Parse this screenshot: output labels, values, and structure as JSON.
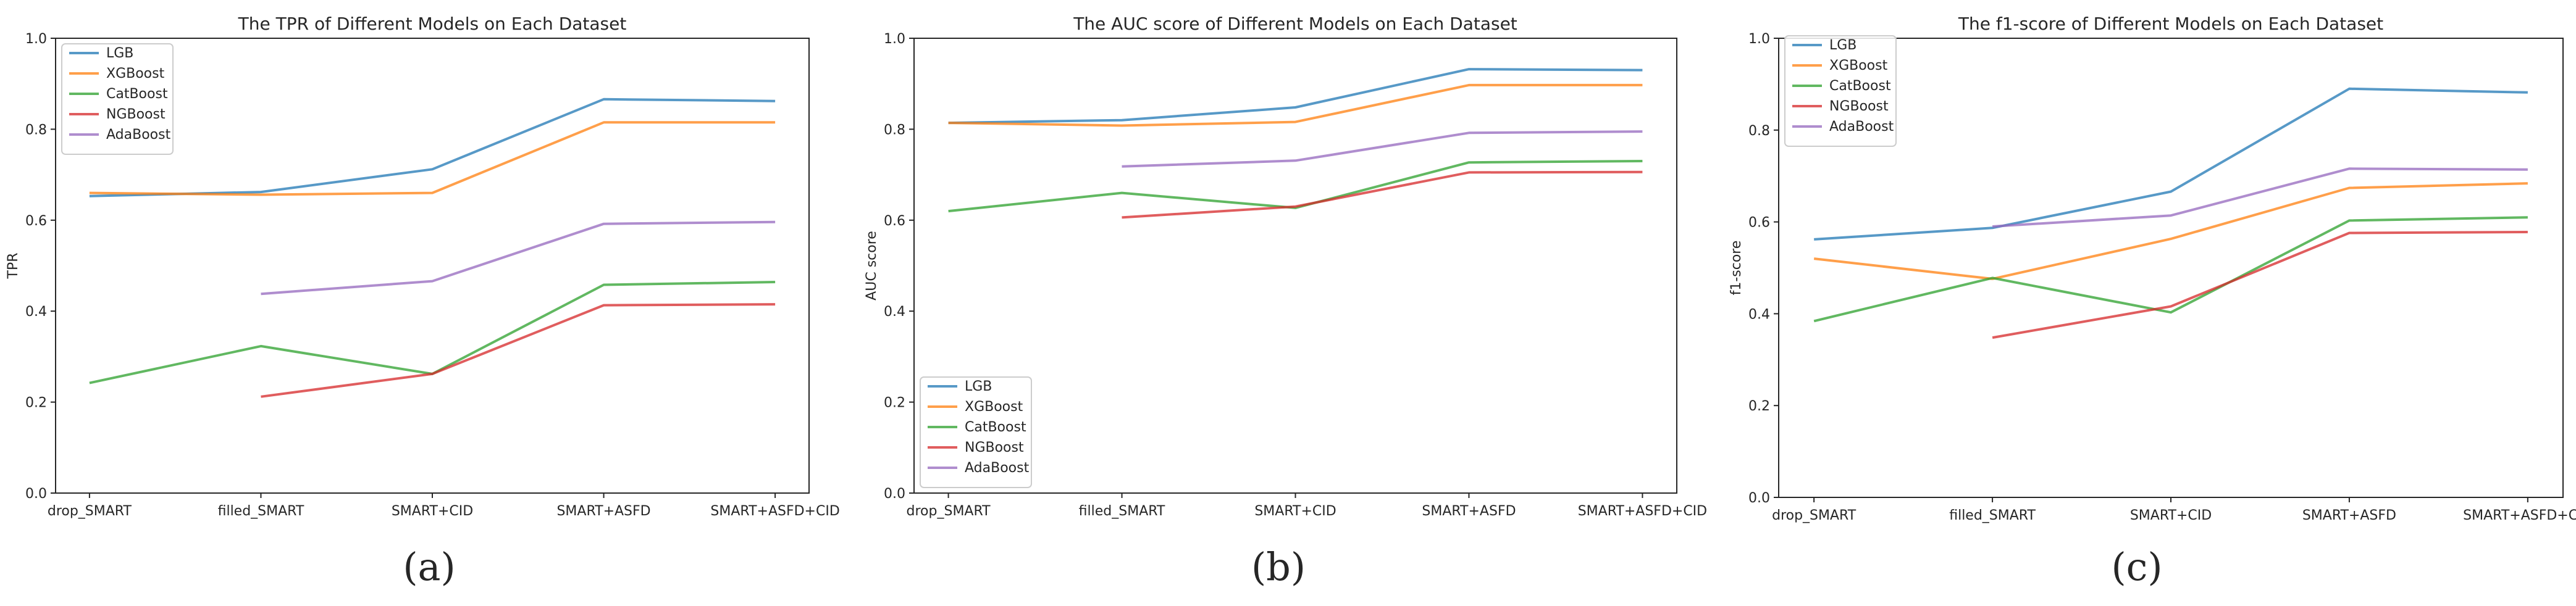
{
  "panels": [
    {
      "caption": "(a)",
      "chart_data": {
        "type": "line",
        "title": "The TPR of Different Models on Each Dataset",
        "xlabel": "",
        "ylabel": "TPR",
        "categories": [
          "drop_SMART",
          "filled_SMART",
          "SMART+CID",
          "SMART+ASFD",
          "SMART+ASFD+CID"
        ],
        "ylim": [
          0.0,
          1.0
        ],
        "yticks": [
          "0.0",
          "0.2",
          "0.4",
          "0.6",
          "0.8",
          "1.0"
        ],
        "grid": false,
        "legend_position": "upper-left",
        "series": [
          {
            "name": "LGB",
            "color": "#1f77b4",
            "values": [
              0.653,
              0.662,
              0.712,
              0.866,
              0.862
            ]
          },
          {
            "name": "XGBoost",
            "color": "#ff7f0e",
            "values": [
              0.66,
              0.656,
              0.66,
              0.815,
              0.815
            ]
          },
          {
            "name": "CatBoost",
            "color": "#2ca02c",
            "values": [
              0.242,
              0.323,
              0.262,
              0.458,
              0.464
            ]
          },
          {
            "name": "NGBoost",
            "color": "#d62728",
            "values": [
              null,
              0.212,
              0.262,
              0.413,
              0.415
            ]
          },
          {
            "name": "AdaBoost",
            "color": "#9467bd",
            "values": [
              null,
              0.438,
              0.466,
              0.592,
              0.596
            ]
          }
        ]
      }
    },
    {
      "caption": "(b)",
      "chart_data": {
        "type": "line",
        "title": "The AUC score of Different Models on Each Dataset",
        "xlabel": "",
        "ylabel": "AUC score",
        "categories": [
          "drop_SMART",
          "filled_SMART",
          "SMART+CID",
          "SMART+ASFD",
          "SMART+ASFD+CID"
        ],
        "ylim": [
          0.0,
          1.0
        ],
        "yticks": [
          "0.0",
          "0.2",
          "0.4",
          "0.6",
          "0.8",
          "1.0"
        ],
        "grid": false,
        "legend_position": "lower-left",
        "series": [
          {
            "name": "LGB",
            "color": "#1f77b4",
            "values": [
              0.814,
              0.82,
              0.848,
              0.932,
              0.93
            ]
          },
          {
            "name": "XGBoost",
            "color": "#ff7f0e",
            "values": [
              0.814,
              0.808,
              0.816,
              0.897,
              0.897
            ]
          },
          {
            "name": "CatBoost",
            "color": "#2ca02c",
            "values": [
              0.62,
              0.66,
              0.627,
              0.727,
              0.73
            ]
          },
          {
            "name": "NGBoost",
            "color": "#d62728",
            "values": [
              null,
              0.606,
              0.63,
              0.705,
              0.706
            ]
          },
          {
            "name": "AdaBoost",
            "color": "#9467bd",
            "values": [
              null,
              0.718,
              0.731,
              0.792,
              0.795
            ]
          }
        ]
      }
    },
    {
      "caption": "(c)",
      "chart_data": {
        "type": "line",
        "title": "The f1-score of Different Models on Each Dataset",
        "xlabel": "",
        "ylabel": "f1-score",
        "categories": [
          "drop_SMART",
          "filled_SMART",
          "SMART+CID",
          "SMART+ASFD",
          "SMART+ASFD+CID"
        ],
        "ylim": [
          0.0,
          1.0
        ],
        "yticks": [
          "0.0",
          "0.2",
          "0.4",
          "0.6",
          "0.8",
          "1.0"
        ],
        "grid": false,
        "legend_position": "upper-left",
        "series": [
          {
            "name": "LGB",
            "color": "#1f77b4",
            "values": [
              0.562,
              0.587,
              0.666,
              0.89,
              0.882
            ]
          },
          {
            "name": "XGBoost",
            "color": "#ff7f0e",
            "values": [
              0.52,
              0.476,
              0.563,
              0.674,
              0.684
            ]
          },
          {
            "name": "CatBoost",
            "color": "#2ca02c",
            "values": [
              0.384,
              0.478,
              0.403,
              0.603,
              0.61
            ]
          },
          {
            "name": "NGBoost",
            "color": "#d62728",
            "values": [
              null,
              0.348,
              0.416,
              0.576,
              0.578
            ]
          },
          {
            "name": "AdaBoost",
            "color": "#9467bd",
            "values": [
              null,
              0.59,
              0.614,
              0.716,
              0.714
            ]
          }
        ]
      }
    }
  ]
}
